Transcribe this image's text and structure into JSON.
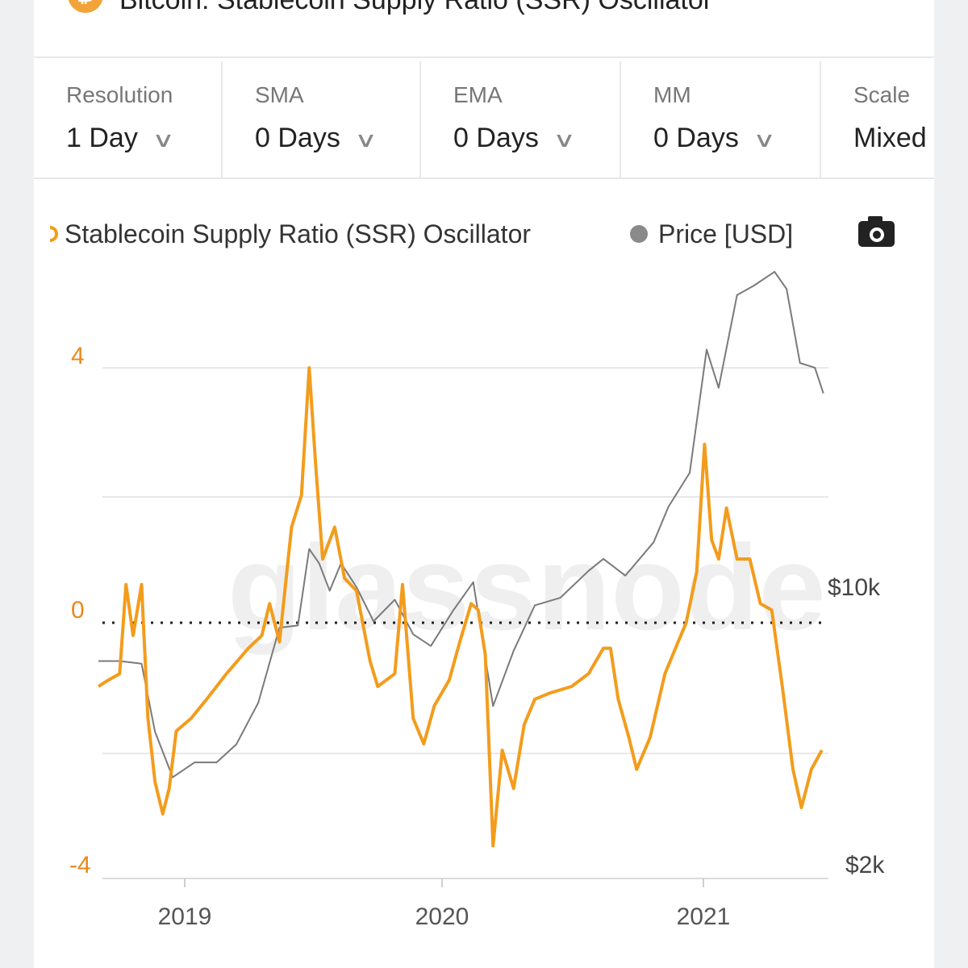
{
  "header": {
    "title": "Bitcoin: Stablecoin Supply Ratio (SSR) Oscillator",
    "logo_glyph": "₿"
  },
  "toolbar": [
    {
      "label": "Resolution",
      "value": "1 Day"
    },
    {
      "label": "SMA",
      "value": "0 Days"
    },
    {
      "label": "EMA",
      "value": "0 Days"
    },
    {
      "label": "MM",
      "value": "0 Days"
    },
    {
      "label": "Scale",
      "value": "Mixed"
    }
  ],
  "legend": {
    "series1": "Stablecoin Supply Ratio (SSR) Oscillator",
    "series2": "Price [USD]",
    "camera_icon": "camera-icon"
  },
  "watermark": "glassnode",
  "colors": {
    "ssr": "#f39c1c",
    "price": "#7a7a7a",
    "accent": "#f2a33a"
  },
  "chart_data": {
    "type": "line",
    "x_ticks": [
      "2019",
      "2020",
      "2021"
    ],
    "y_left_ticks": [
      "4",
      "0",
      "-4"
    ],
    "y_right_ticks": [
      "$10k",
      "$2k"
    ],
    "y_left_range": [
      -4,
      4.5
    ],
    "y_right_scale": "log",
    "zero_line": "dotted",
    "series": [
      {
        "name": "Stablecoin Supply Ratio (SSR) Oscillator",
        "axis": "left",
        "points": [
          [
            "2018-09-01",
            -1.0
          ],
          [
            "2018-09-15",
            -0.9
          ],
          [
            "2018-10-01",
            -0.8
          ],
          [
            "2018-10-10",
            0.6
          ],
          [
            "2018-10-20",
            -0.2
          ],
          [
            "2018-11-01",
            0.6
          ],
          [
            "2018-11-10",
            -1.5
          ],
          [
            "2018-11-20",
            -2.5
          ],
          [
            "2018-12-01",
            -3.0
          ],
          [
            "2018-12-10",
            -2.6
          ],
          [
            "2018-12-20",
            -1.7
          ],
          [
            "2019-01-10",
            -1.5
          ],
          [
            "2019-02-01",
            -1.2
          ],
          [
            "2019-03-01",
            -0.8
          ],
          [
            "2019-04-01",
            -0.4
          ],
          [
            "2019-04-20",
            -0.2
          ],
          [
            "2019-05-01",
            0.3
          ],
          [
            "2019-05-15",
            -0.3
          ],
          [
            "2019-06-01",
            1.5
          ],
          [
            "2019-06-15",
            2.0
          ],
          [
            "2019-06-26",
            4.0
          ],
          [
            "2019-07-05",
            2.5
          ],
          [
            "2019-07-15",
            1.0
          ],
          [
            "2019-08-01",
            1.5
          ],
          [
            "2019-08-15",
            0.7
          ],
          [
            "2019-09-01",
            0.5
          ],
          [
            "2019-09-20",
            -0.6
          ],
          [
            "2019-10-01",
            -1.0
          ],
          [
            "2019-10-25",
            -0.8
          ],
          [
            "2019-11-05",
            0.6
          ],
          [
            "2019-11-20",
            -1.5
          ],
          [
            "2019-12-05",
            -1.9
          ],
          [
            "2019-12-20",
            -1.3
          ],
          [
            "2020-01-10",
            -0.9
          ],
          [
            "2020-01-25",
            -0.3
          ],
          [
            "2020-02-10",
            0.3
          ],
          [
            "2020-02-20",
            0.2
          ],
          [
            "2020-03-01",
            -0.5
          ],
          [
            "2020-03-12",
            -3.5
          ],
          [
            "2020-03-25",
            -2.0
          ],
          [
            "2020-04-10",
            -2.6
          ],
          [
            "2020-04-25",
            -1.6
          ],
          [
            "2020-05-10",
            -1.2
          ],
          [
            "2020-06-01",
            -1.1
          ],
          [
            "2020-07-01",
            -1.0
          ],
          [
            "2020-07-25",
            -0.8
          ],
          [
            "2020-08-15",
            -0.4
          ],
          [
            "2020-08-25",
            -0.4
          ],
          [
            "2020-09-05",
            -1.2
          ],
          [
            "2020-09-20",
            -1.8
          ],
          [
            "2020-10-01",
            -2.3
          ],
          [
            "2020-10-20",
            -1.8
          ],
          [
            "2020-11-10",
            -0.8
          ],
          [
            "2020-11-25",
            -0.4
          ],
          [
            "2020-12-10",
            0.0
          ],
          [
            "2020-12-25",
            0.8
          ],
          [
            "2021-01-05",
            2.8
          ],
          [
            "2021-01-15",
            1.3
          ],
          [
            "2021-01-25",
            1.0
          ],
          [
            "2021-02-05",
            1.8
          ],
          [
            "2021-02-20",
            1.0
          ],
          [
            "2021-03-10",
            1.0
          ],
          [
            "2021-03-25",
            0.3
          ],
          [
            "2021-04-10",
            0.2
          ],
          [
            "2021-04-25",
            -1.0
          ],
          [
            "2021-05-10",
            -2.3
          ],
          [
            "2021-05-22",
            -2.9
          ],
          [
            "2021-06-05",
            -2.3
          ],
          [
            "2021-06-20",
            -2.0
          ]
        ]
      },
      {
        "name": "Price [USD]",
        "axis": "right",
        "points": [
          [
            "2018-09-01",
            6500
          ],
          [
            "2018-10-01",
            6500
          ],
          [
            "2018-11-01",
            6400
          ],
          [
            "2018-11-20",
            4300
          ],
          [
            "2018-12-15",
            3300
          ],
          [
            "2019-01-15",
            3600
          ],
          [
            "2019-02-15",
            3600
          ],
          [
            "2019-03-15",
            4000
          ],
          [
            "2019-04-15",
            5100
          ],
          [
            "2019-05-15",
            7900
          ],
          [
            "2019-06-10",
            8000
          ],
          [
            "2019-06-26",
            12500
          ],
          [
            "2019-07-10",
            11500
          ],
          [
            "2019-07-25",
            9800
          ],
          [
            "2019-08-10",
            11500
          ],
          [
            "2019-09-01",
            10000
          ],
          [
            "2019-09-25",
            8200
          ],
          [
            "2019-10-25",
            9300
          ],
          [
            "2019-11-20",
            7600
          ],
          [
            "2019-12-15",
            7100
          ],
          [
            "2020-01-15",
            8700
          ],
          [
            "2020-02-13",
            10300
          ],
          [
            "2020-03-12",
            5000
          ],
          [
            "2020-04-10",
            6900
          ],
          [
            "2020-05-10",
            9000
          ],
          [
            "2020-06-15",
            9400
          ],
          [
            "2020-07-25",
            11000
          ],
          [
            "2020-08-15",
            11800
          ],
          [
            "2020-09-15",
            10700
          ],
          [
            "2020-10-25",
            13000
          ],
          [
            "2020-11-15",
            16000
          ],
          [
            "2020-12-15",
            19500
          ],
          [
            "2021-01-08",
            40000
          ],
          [
            "2021-01-25",
            32000
          ],
          [
            "2021-02-20",
            55000
          ],
          [
            "2021-03-15",
            58000
          ],
          [
            "2021-04-14",
            63000
          ],
          [
            "2021-05-01",
            57000
          ],
          [
            "2021-05-20",
            37000
          ],
          [
            "2021-06-10",
            36000
          ],
          [
            "2021-06-22",
            31000
          ]
        ]
      }
    ]
  }
}
